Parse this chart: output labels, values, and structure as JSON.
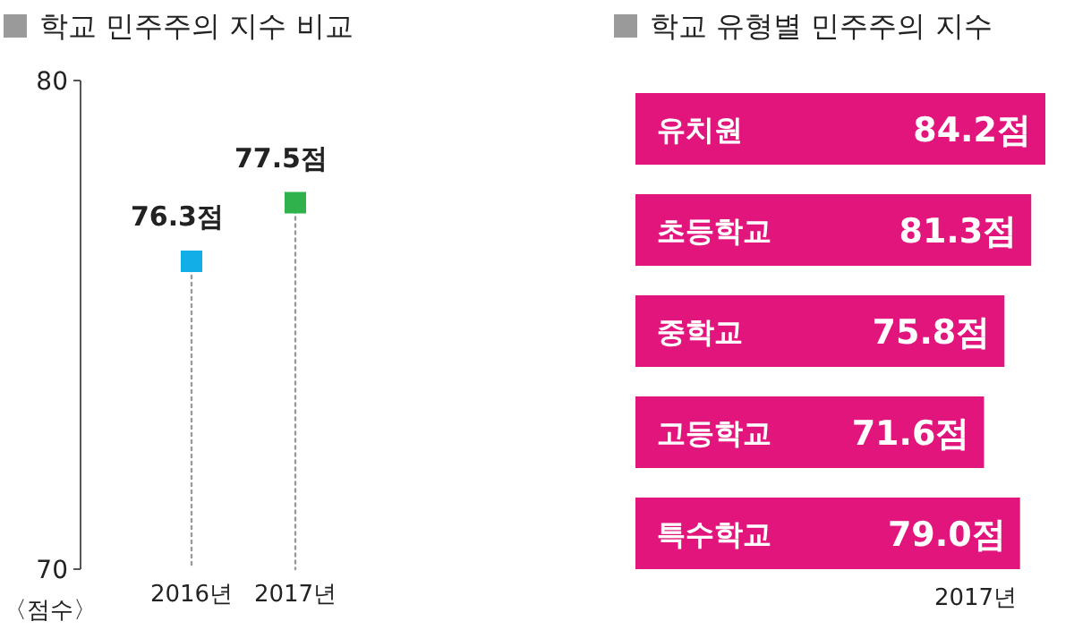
{
  "chart_data": [
    {
      "type": "lollipop",
      "title": "학교 민주주의 지수 비교",
      "ylabel": "〈점수〉",
      "categories": [
        "2016년",
        "2017년"
      ],
      "values": [
        76.3,
        77.5
      ],
      "colors": [
        "#12aee8",
        "#2fb24c"
      ],
      "value_labels": [
        "76.3점",
        "77.5점"
      ],
      "ylim": [
        70,
        80
      ],
      "yticks": [
        70,
        80
      ],
      "marker": "square",
      "line_style": "dotted"
    },
    {
      "type": "bar",
      "orientation": "horizontal",
      "title": "학교 유형별 민주주의 지수",
      "xlabel": "2017년",
      "categories": [
        "유치원",
        "초등학교",
        "중학교",
        "고등학교",
        "특수학교"
      ],
      "values": [
        84.2,
        81.3,
        75.8,
        71.6,
        79.0
      ],
      "color": "#e2157d",
      "value_labels": [
        "84.2점",
        "81.3점",
        "75.8점",
        "71.6점",
        "79.0점"
      ]
    }
  ]
}
